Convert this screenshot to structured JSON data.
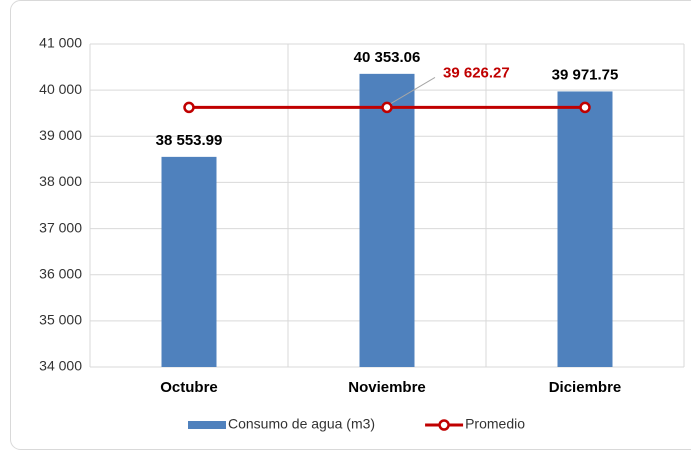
{
  "chart_data": {
    "type": "bar",
    "categories": [
      "Octubre",
      "Noviembre",
      "Diciembre"
    ],
    "series": [
      {
        "name": "Consumo de agua (m3)",
        "type": "bar",
        "color": "#4f81bd",
        "values": [
          38553.99,
          40353.06,
          39971.75
        ],
        "value_labels": [
          "38 553.99",
          "40 353.06",
          "39 971.75"
        ]
      },
      {
        "name": "Promedio",
        "type": "line",
        "color": "#c00000",
        "values": [
          39626.27,
          39626.27,
          39626.27
        ],
        "value_labels": [
          null,
          "39 626.27",
          null
        ]
      }
    ],
    "ylim": [
      34000,
      41000
    ],
    "yticks": [
      {
        "value": 34000,
        "label": "34 000"
      },
      {
        "value": 35000,
        "label": "35 000"
      },
      {
        "value": 36000,
        "label": "36 000"
      },
      {
        "value": 37000,
        "label": "37 000"
      },
      {
        "value": 38000,
        "label": "38 000"
      },
      {
        "value": 39000,
        "label": "39 000"
      },
      {
        "value": 40000,
        "label": "40 000"
      },
      {
        "value": 41000,
        "label": "41 000"
      }
    ],
    "grid": true,
    "legend": "bottom"
  }
}
